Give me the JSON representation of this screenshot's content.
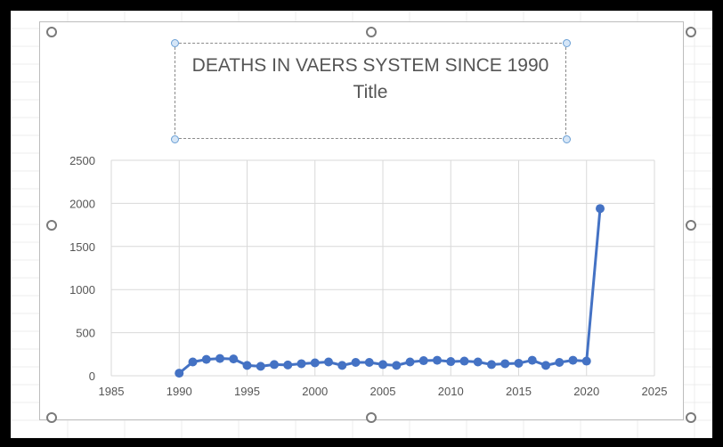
{
  "chart_data": {
    "type": "line",
    "title": "DEATHS IN VAERS SYSTEM SINCE 1990",
    "subtitle": "Title",
    "xlabel": "",
    "ylabel": "",
    "xlim": [
      1985,
      2025
    ],
    "ylim": [
      0,
      2500
    ],
    "xticks": [
      "1985",
      "1990",
      "1995",
      "2000",
      "2005",
      "2010",
      "2015",
      "2020",
      "2025"
    ],
    "yticks": [
      "0",
      "500",
      "1000",
      "1500",
      "2000",
      "2500"
    ],
    "grid": true,
    "series": [
      {
        "color": "#4472C4",
        "x": [
          1990,
          1991,
          1992,
          1993,
          1994,
          1995,
          1996,
          1997,
          1998,
          1999,
          2000,
          2001,
          2002,
          2003,
          2004,
          2005,
          2006,
          2007,
          2008,
          2009,
          2010,
          2011,
          2012,
          2013,
          2014,
          2015,
          2016,
          2017,
          2018,
          2019,
          2020,
          2021
        ],
        "y": [
          30,
          160,
          190,
          200,
          195,
          120,
          110,
          130,
          125,
          140,
          150,
          160,
          120,
          155,
          155,
          130,
          120,
          160,
          175,
          180,
          165,
          170,
          160,
          130,
          140,
          145,
          180,
          120,
          155,
          180,
          170,
          1940
        ]
      }
    ]
  }
}
